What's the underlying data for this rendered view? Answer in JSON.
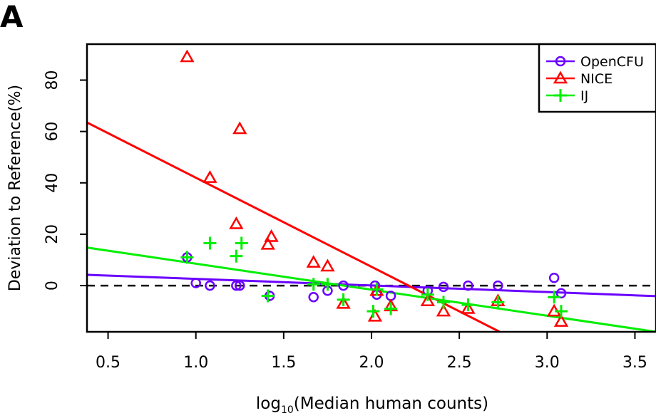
{
  "panel_label": "A",
  "chart_data": {
    "type": "scatter",
    "xlabel_base": "log",
    "xlabel_sub": "10",
    "xlabel_rest": "(Median human counts)",
    "ylabel": "Deviation to Reference(%)",
    "xlim": [
      0.38,
      3.62
    ],
    "ylim": [
      -18,
      94
    ],
    "x_ticks": [
      0.5,
      1.0,
      1.5,
      2.0,
      2.5,
      3.0,
      3.5
    ],
    "x_tick_labels": [
      "0.5",
      "1.0",
      "1.5",
      "2.0",
      "2.5",
      "3.0",
      "3.5"
    ],
    "y_ticks": [
      0,
      20,
      40,
      60,
      80
    ],
    "y_tick_labels": [
      "0",
      "20",
      "40",
      "60",
      "80"
    ],
    "zero_line": true,
    "legend_position": "top-right",
    "series": [
      {
        "name": "OpenCFU",
        "marker": "circle",
        "color": "#6a00ff",
        "points": [
          [
            0.95,
            11
          ],
          [
            1.0,
            1
          ],
          [
            1.08,
            0
          ],
          [
            1.23,
            0
          ],
          [
            1.25,
            0
          ],
          [
            1.42,
            -4
          ],
          [
            1.67,
            -4.5
          ],
          [
            1.75,
            -2
          ],
          [
            1.84,
            0
          ],
          [
            2.02,
            0
          ],
          [
            2.03,
            -3.5
          ],
          [
            2.11,
            -4
          ],
          [
            2.32,
            -2
          ],
          [
            2.41,
            -0.5
          ],
          [
            2.55,
            0
          ],
          [
            2.72,
            0
          ],
          [
            3.04,
            3
          ],
          [
            3.08,
            -3
          ]
        ],
        "fit": [
          [
            0.38,
            4.2
          ],
          [
            3.62,
            -4.1
          ]
        ]
      },
      {
        "name": "NICE",
        "marker": "triangle",
        "color": "#ff0000",
        "points": [
          [
            0.95,
            89
          ],
          [
            1.08,
            42
          ],
          [
            1.25,
            61
          ],
          [
            1.23,
            24
          ],
          [
            1.41,
            16
          ],
          [
            1.43,
            19
          ],
          [
            1.67,
            9
          ],
          [
            1.75,
            7.5
          ],
          [
            1.84,
            -7
          ],
          [
            2.02,
            -12
          ],
          [
            2.03,
            -2
          ],
          [
            2.11,
            -8
          ],
          [
            2.32,
            -6
          ],
          [
            2.41,
            -10
          ],
          [
            2.55,
            -9
          ],
          [
            2.72,
            -6
          ],
          [
            3.04,
            -10
          ],
          [
            3.08,
            -14
          ]
        ],
        "fit": [
          [
            0.38,
            63.5
          ],
          [
            2.73,
            -18
          ]
        ]
      },
      {
        "name": "IJ",
        "marker": "plus",
        "color": "#00ee00",
        "points": [
          [
            0.95,
            11
          ],
          [
            1.08,
            16.5
          ],
          [
            1.23,
            11.5
          ],
          [
            1.26,
            16.5
          ],
          [
            1.41,
            -4
          ],
          [
            1.67,
            0.5
          ],
          [
            1.75,
            0.5
          ],
          [
            1.84,
            -5.5
          ],
          [
            2.01,
            -10
          ],
          [
            2.03,
            -1.5
          ],
          [
            2.11,
            -9
          ],
          [
            2.32,
            -3.5
          ],
          [
            2.41,
            -6.5
          ],
          [
            2.55,
            -7.5
          ],
          [
            2.72,
            -6.5
          ],
          [
            3.04,
            -4.5
          ],
          [
            3.08,
            -10
          ]
        ],
        "fit": [
          [
            0.38,
            14.8
          ],
          [
            3.62,
            -18
          ]
        ]
      }
    ]
  }
}
